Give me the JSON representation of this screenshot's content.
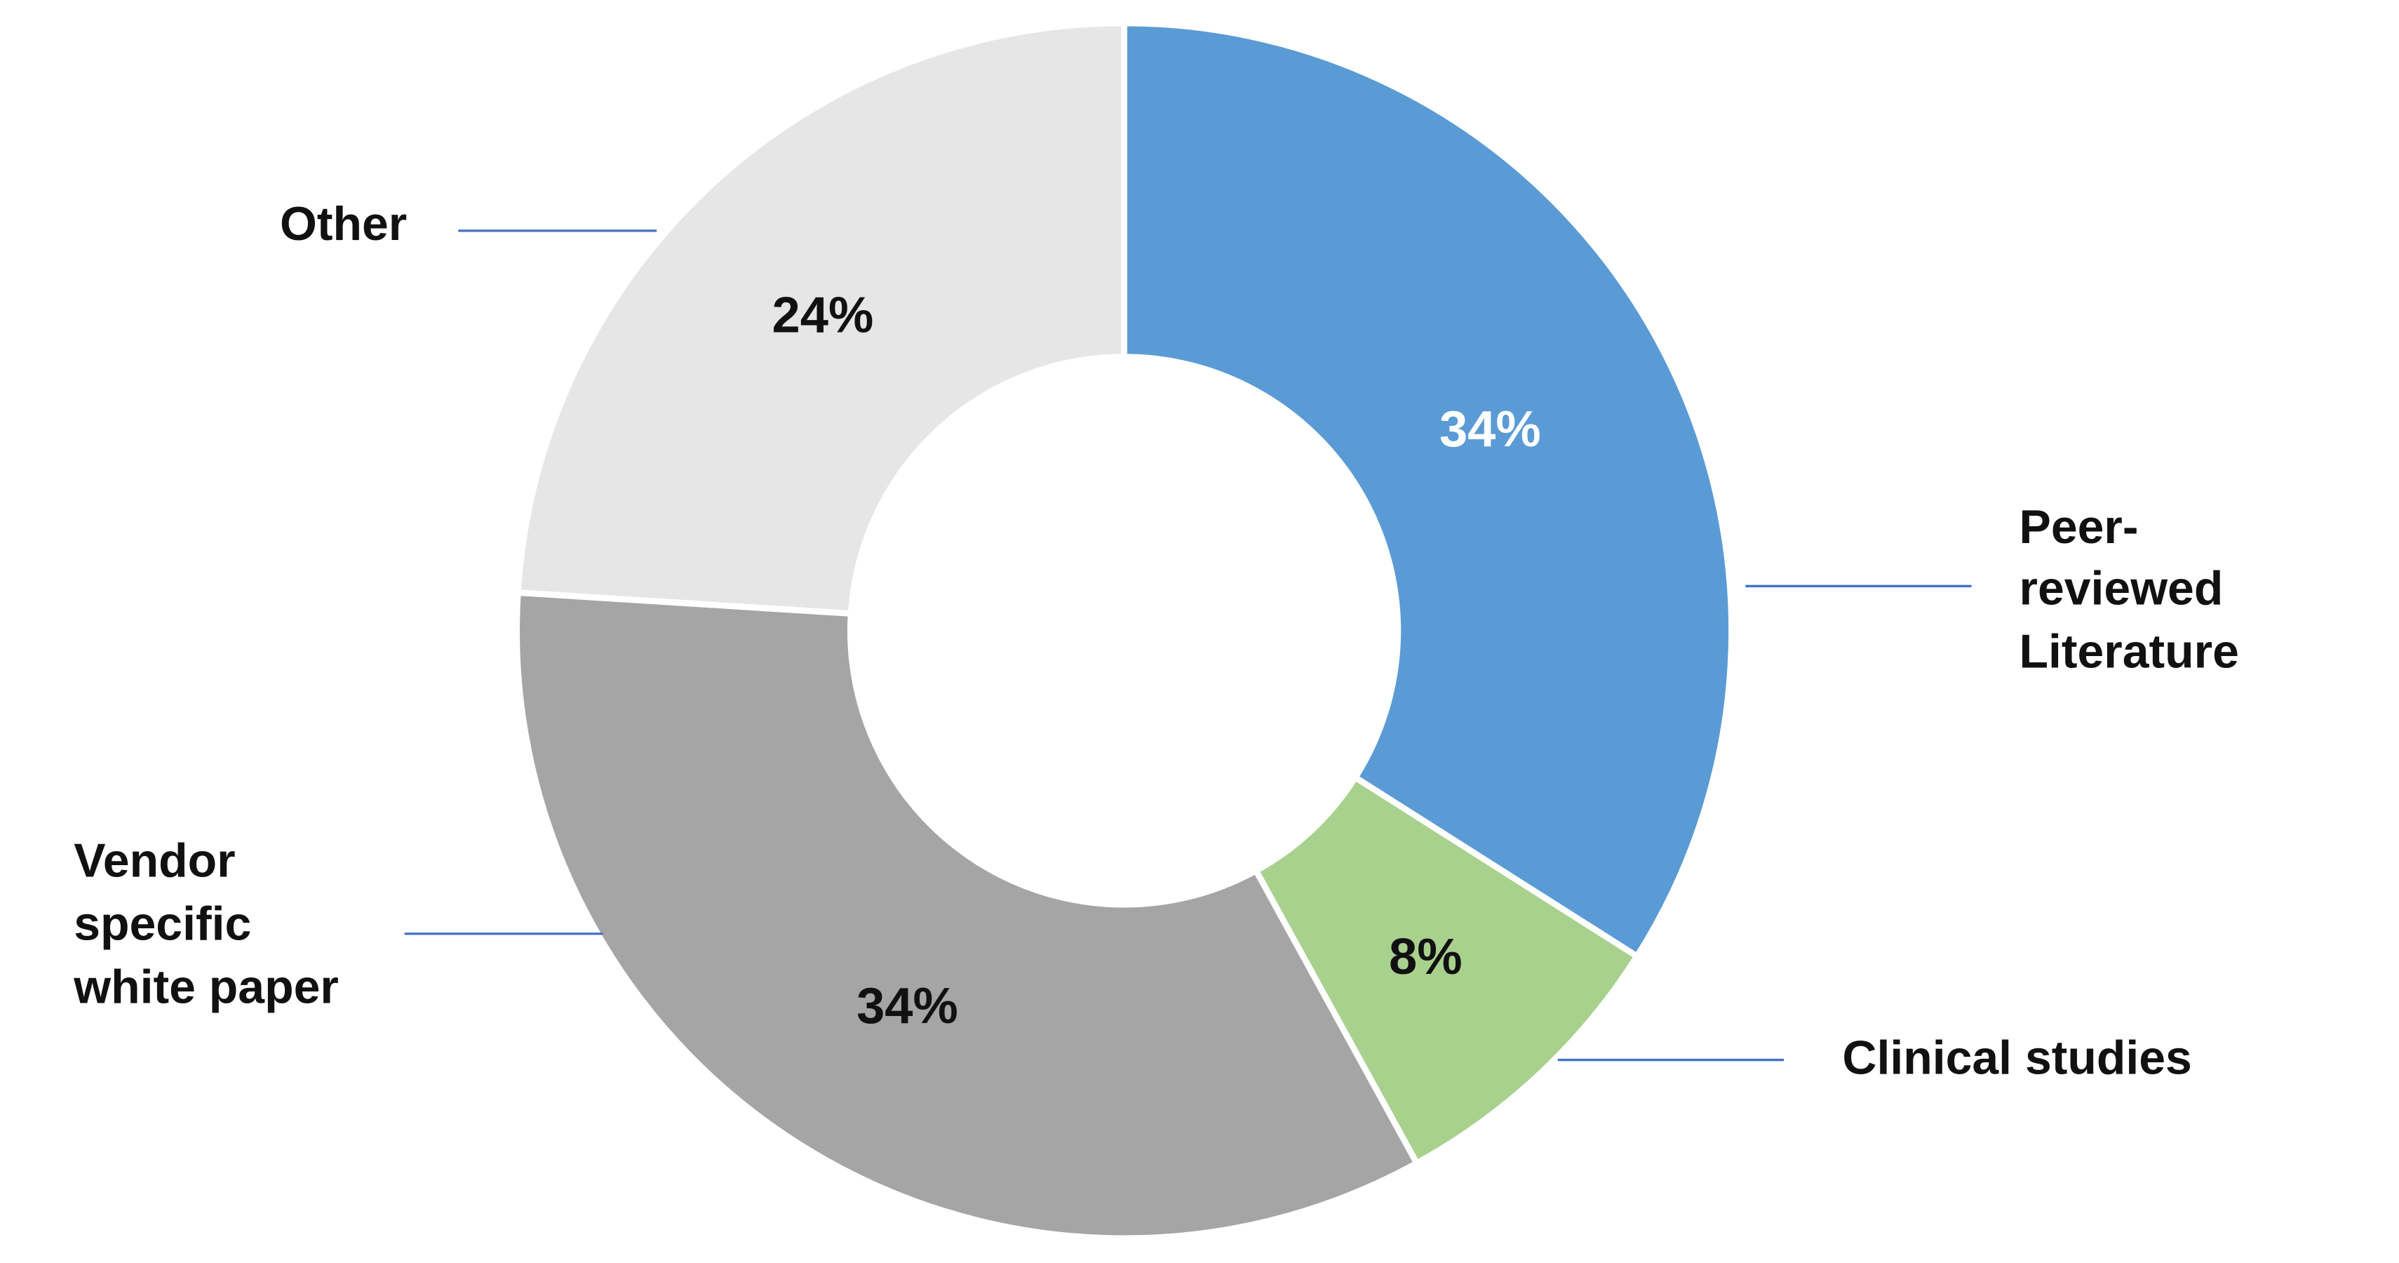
{
  "chart_data": {
    "type": "pie",
    "variant": "donut",
    "categories": [
      "Peer-reviewed Literature",
      "Clinical studies",
      "Vendor specific white paper",
      "Other"
    ],
    "values": [
      34,
      8,
      34,
      24
    ],
    "data_labels": [
      "34%",
      "8%",
      "34%",
      "24%"
    ],
    "label_lines": [
      [
        "Peer-",
        "reviewed",
        "Literature"
      ],
      [
        "Clinical studies"
      ],
      [
        "Vendor",
        "specific",
        "white paper"
      ],
      [
        "Other"
      ]
    ],
    "colors": [
      "#5B9BD5",
      "#A9D18E",
      "#A5A5A5",
      "#E7E6E6"
    ],
    "data_label_colors": [
      "#FFFFFF",
      "#111111",
      "#111111",
      "#111111"
    ],
    "leader_line_color": "#4472C4",
    "start_angle": "top, clockwise",
    "legend": "none (direct category labels with leader lines)"
  }
}
